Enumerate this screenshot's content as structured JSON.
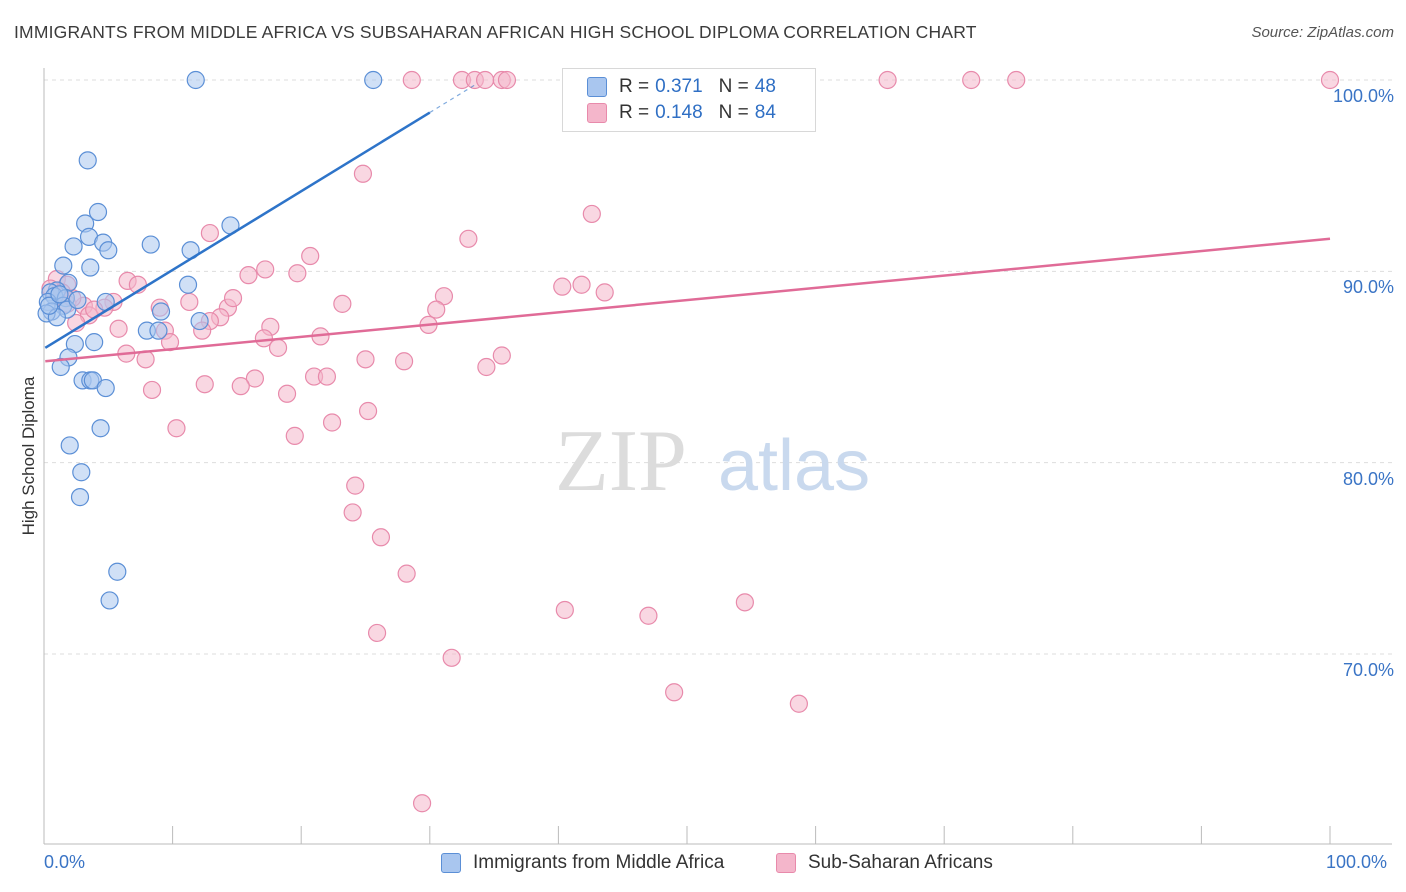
{
  "title": "IMMIGRANTS FROM MIDDLE AFRICA VS SUBSAHARAN AFRICAN HIGH SCHOOL DIPLOMA CORRELATION CHART",
  "source": "Source: ZipAtlas.com",
  "watermark": {
    "zip": "ZIP",
    "atlas": "atlas"
  },
  "legend_top": {
    "rows": [
      {
        "r_label": "R =",
        "r_value": "0.371",
        "n_label": "N =",
        "n_value": "48"
      },
      {
        "r_label": "R =",
        "r_value": "0.148",
        "n_label": "N =",
        "n_value": "84"
      }
    ]
  },
  "legend_bottom": {
    "items": [
      {
        "label": "Immigrants from Middle Africa"
      },
      {
        "label": "Sub-Saharan Africans"
      }
    ]
  },
  "colors": {
    "blue_fill": "#a9c6ef",
    "blue_stroke": "#5b8fd6",
    "blue_line": "#2e74c9",
    "pink_fill": "#f4b6cb",
    "pink_stroke": "#e88aab",
    "pink_line": "#e06b97",
    "tick_text": "#3a74c5",
    "grid": "#dddddd"
  },
  "chart_data": {
    "type": "scatter",
    "title": "IMMIGRANTS FROM MIDDLE AFRICA VS SUBSAHARAN AFRICAN HIGH SCHOOL DIPLOMA CORRELATION CHART",
    "xlabel": "",
    "ylabel": "High School Diploma",
    "xlim": [
      0,
      100
    ],
    "ylim": [
      61,
      102
    ],
    "x_tick_labels": [
      "0.0%",
      "100.0%"
    ],
    "y_ticks": [
      70,
      80,
      90,
      100
    ],
    "y_tick_labels": [
      "70.0%",
      "80.0%",
      "90.0%",
      "100.0%"
    ],
    "grid": true,
    "series": [
      {
        "name": "Immigrants from Middle Africa",
        "r": 0.371,
        "n": 48,
        "trend": {
          "x": [
            0.1,
            30.0
          ],
          "y": [
            86.0,
            98.3
          ]
        },
        "points": [
          [
            11.8,
            100.0
          ],
          [
            25.6,
            100.0
          ],
          [
            3.4,
            95.8
          ],
          [
            4.2,
            93.1
          ],
          [
            3.2,
            92.5
          ],
          [
            14.5,
            92.4
          ],
          [
            3.5,
            91.8
          ],
          [
            4.6,
            91.5
          ],
          [
            8.3,
            91.4
          ],
          [
            2.3,
            91.3
          ],
          [
            5.0,
            91.1
          ],
          [
            11.4,
            91.1
          ],
          [
            1.5,
            90.3
          ],
          [
            3.6,
            90.2
          ],
          [
            1.9,
            89.4
          ],
          [
            11.2,
            89.3
          ],
          [
            1.0,
            89.0
          ],
          [
            0.5,
            88.9
          ],
          [
            0.8,
            88.7
          ],
          [
            1.7,
            88.6
          ],
          [
            0.3,
            88.4
          ],
          [
            4.8,
            88.4
          ],
          [
            1.5,
            88.2
          ],
          [
            1.8,
            88.0
          ],
          [
            0.6,
            87.9
          ],
          [
            9.1,
            87.9
          ],
          [
            0.2,
            87.8
          ],
          [
            1.0,
            87.6
          ],
          [
            12.1,
            87.4
          ],
          [
            8.0,
            86.9
          ],
          [
            8.9,
            86.9
          ],
          [
            3.9,
            86.3
          ],
          [
            2.4,
            86.2
          ],
          [
            1.9,
            85.5
          ],
          [
            1.3,
            85.0
          ],
          [
            3.0,
            84.3
          ],
          [
            3.6,
            84.3
          ],
          [
            3.8,
            84.3
          ],
          [
            4.8,
            83.9
          ],
          [
            4.4,
            81.8
          ],
          [
            2.0,
            80.9
          ],
          [
            2.9,
            79.5
          ],
          [
            2.8,
            78.2
          ],
          [
            5.7,
            74.3
          ],
          [
            5.1,
            72.8
          ],
          [
            0.4,
            88.2
          ],
          [
            1.2,
            88.8
          ],
          [
            2.6,
            88.5
          ]
        ]
      },
      {
        "name": "Sub-Saharan Africans",
        "r": 0.148,
        "n": 84,
        "trend": {
          "x": [
            0.1,
            100.0
          ],
          "y": [
            85.3,
            91.7
          ]
        },
        "points": [
          [
            28.6,
            100.0
          ],
          [
            32.5,
            100.0
          ],
          [
            33.5,
            100.0
          ],
          [
            34.3,
            100.0
          ],
          [
            35.6,
            100.0
          ],
          [
            36.0,
            100.0
          ],
          [
            65.6,
            100.0
          ],
          [
            72.1,
            100.0
          ],
          [
            75.6,
            100.0
          ],
          [
            100.0,
            100.0
          ],
          [
            52.5,
            99.4
          ],
          [
            56.0,
            99.0
          ],
          [
            24.8,
            95.1
          ],
          [
            42.6,
            93.0
          ],
          [
            33.0,
            91.7
          ],
          [
            12.9,
            92.0
          ],
          [
            20.7,
            90.8
          ],
          [
            17.2,
            90.1
          ],
          [
            15.9,
            89.8
          ],
          [
            19.7,
            89.9
          ],
          [
            1.0,
            89.6
          ],
          [
            6.5,
            89.5
          ],
          [
            1.8,
            89.3
          ],
          [
            7.3,
            89.3
          ],
          [
            40.3,
            89.2
          ],
          [
            41.8,
            89.3
          ],
          [
            43.6,
            88.9
          ],
          [
            31.1,
            88.7
          ],
          [
            5.4,
            88.4
          ],
          [
            11.3,
            88.4
          ],
          [
            23.2,
            88.3
          ],
          [
            9.0,
            88.1
          ],
          [
            14.3,
            88.1
          ],
          [
            14.7,
            88.6
          ],
          [
            1.8,
            88.3
          ],
          [
            3.1,
            88.2
          ],
          [
            4.7,
            88.1
          ],
          [
            30.5,
            88.0
          ],
          [
            3.5,
            87.7
          ],
          [
            13.7,
            87.6
          ],
          [
            12.9,
            87.4
          ],
          [
            2.5,
            87.3
          ],
          [
            17.6,
            87.1
          ],
          [
            5.8,
            87.0
          ],
          [
            9.4,
            86.9
          ],
          [
            12.3,
            86.9
          ],
          [
            29.9,
            87.2
          ],
          [
            21.5,
            86.6
          ],
          [
            17.1,
            86.5
          ],
          [
            9.8,
            86.3
          ],
          [
            18.2,
            86.0
          ],
          [
            6.4,
            85.7
          ],
          [
            7.9,
            85.4
          ],
          [
            25.0,
            85.4
          ],
          [
            28.0,
            85.3
          ],
          [
            35.6,
            85.6
          ],
          [
            34.4,
            85.0
          ],
          [
            21.0,
            84.5
          ],
          [
            22.0,
            84.5
          ],
          [
            16.4,
            84.4
          ],
          [
            12.5,
            84.1
          ],
          [
            15.3,
            84.0
          ],
          [
            8.4,
            83.8
          ],
          [
            18.9,
            83.6
          ],
          [
            25.2,
            82.7
          ],
          [
            22.4,
            82.1
          ],
          [
            10.3,
            81.8
          ],
          [
            19.5,
            81.4
          ],
          [
            24.2,
            78.8
          ],
          [
            24.0,
            77.4
          ],
          [
            26.2,
            76.1
          ],
          [
            28.2,
            74.2
          ],
          [
            40.5,
            72.3
          ],
          [
            47.0,
            72.0
          ],
          [
            54.5,
            72.7
          ],
          [
            25.9,
            71.1
          ],
          [
            31.7,
            69.8
          ],
          [
            49.0,
            68.0
          ],
          [
            58.7,
            67.4
          ],
          [
            29.4,
            62.2
          ],
          [
            0.5,
            89.1
          ],
          [
            1.4,
            88.9
          ],
          [
            2.2,
            88.6
          ],
          [
            3.9,
            88.0
          ]
        ]
      }
    ]
  }
}
